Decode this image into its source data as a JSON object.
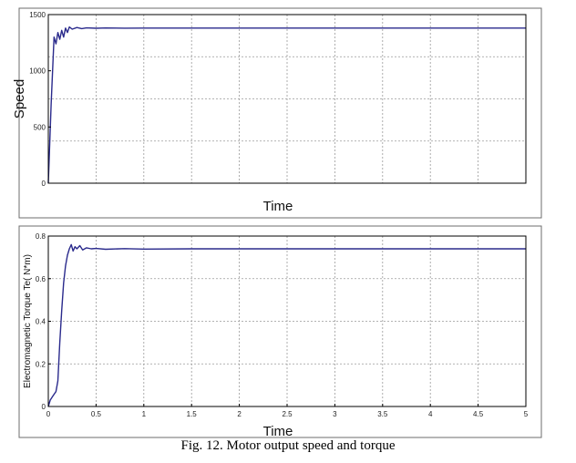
{
  "caption": "Fig. 12.  Motor output speed and torque",
  "colors": {
    "trace": "#2a2a8c",
    "grid": "#9a9a9a",
    "frame": "#000000",
    "background": "#ffffff"
  },
  "chart_data": [
    {
      "type": "line",
      "title": "",
      "xlabel": "Time",
      "ylabel": "Speed",
      "xlim": [
        0,
        5
      ],
      "ylim": [
        0,
        1500
      ],
      "xticks": [],
      "yticks": [
        "0",
        "500",
        "1000",
        "1500"
      ],
      "ytick_values": [
        0,
        500,
        1000,
        1500
      ],
      "grid": true,
      "series": [
        {
          "x": [
            0,
            0.03,
            0.06,
            0.08,
            0.1,
            0.12,
            0.14,
            0.16,
            0.18,
            0.2,
            0.22,
            0.25,
            0.3,
            0.35,
            0.4,
            0.5,
            0.6,
            0.8,
            1.0,
            1.5,
            2.0,
            3.0,
            4.0,
            5.0
          ],
          "values": [
            0,
            700,
            1300,
            1240,
            1340,
            1280,
            1360,
            1300,
            1380,
            1340,
            1390,
            1370,
            1385,
            1375,
            1382,
            1378,
            1381,
            1379,
            1380,
            1380,
            1380,
            1380,
            1380,
            1380
          ]
        }
      ]
    },
    {
      "type": "line",
      "title": "",
      "xlabel": "Time",
      "ylabel": "Electromagnetic Torque Te( N*m)",
      "xlim": [
        0,
        5
      ],
      "ylim": [
        0,
        0.8
      ],
      "xticks": [
        "0",
        "0.5",
        "1",
        "1.5",
        "2",
        "2.5",
        "3",
        "3.5",
        "4",
        "4.5",
        "5"
      ],
      "xtick_values": [
        0,
        0.5,
        1,
        1.5,
        2,
        2.5,
        3,
        3.5,
        4,
        4.5,
        5
      ],
      "yticks": [
        "0",
        "0.2",
        "0.4",
        "0.6",
        "0.8"
      ],
      "ytick_values": [
        0,
        0.2,
        0.4,
        0.6,
        0.8
      ],
      "grid": true,
      "series": [
        {
          "x": [
            0,
            0.02,
            0.05,
            0.08,
            0.1,
            0.12,
            0.14,
            0.16,
            0.18,
            0.2,
            0.22,
            0.24,
            0.26,
            0.28,
            0.3,
            0.33,
            0.36,
            0.4,
            0.45,
            0.5,
            0.6,
            0.8,
            1.0,
            1.5,
            2.0,
            3.0,
            4.0,
            5.0
          ],
          "values": [
            0.0,
            0.03,
            0.05,
            0.07,
            0.12,
            0.3,
            0.45,
            0.58,
            0.66,
            0.71,
            0.74,
            0.76,
            0.73,
            0.75,
            0.74,
            0.755,
            0.735,
            0.745,
            0.74,
            0.742,
            0.738,
            0.741,
            0.739,
            0.74,
            0.74,
            0.74,
            0.74,
            0.74
          ]
        }
      ]
    }
  ]
}
